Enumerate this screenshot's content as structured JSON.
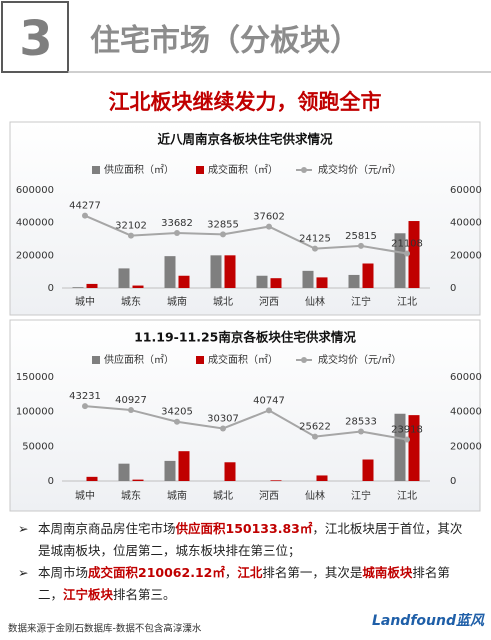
{
  "header": {
    "number": "3",
    "title": "住宅市场（分板块）"
  },
  "headline": "江北板块继续发力，领跑全市",
  "chart_data": [
    {
      "type": "bar",
      "title": "近八周南京各板块住宅供求情况",
      "categories": [
        "城中",
        "城东",
        "城南",
        "城北",
        "河西",
        "仙林",
        "江宁",
        "江北"
      ],
      "series": [
        {
          "name": "供应面积（㎡）",
          "color": "#7f7f7f",
          "values": [
            5000,
            120000,
            195000,
            200000,
            75000,
            105000,
            80000,
            335000
          ]
        },
        {
          "name": "成交面积（㎡）",
          "color": "#c00000",
          "values": [
            25000,
            15000,
            75000,
            200000,
            60000,
            65000,
            150000,
            410000
          ]
        },
        {
          "name": "成交均价（元/㎡）",
          "color": "#a6a6a6",
          "type": "line",
          "axis": "y2",
          "values": [
            44277,
            32102,
            33682,
            32855,
            37602,
            24125,
            25815,
            21108
          ]
        }
      ],
      "ylim": [
        0,
        600000
      ],
      "yticks": [
        0,
        200000,
        400000,
        600000
      ],
      "y2lim": [
        0,
        60000
      ],
      "y2ticks": [
        0,
        20000,
        40000,
        60000
      ],
      "grid": false
    },
    {
      "type": "bar",
      "title": "11.19-11.25南京各板块住宅供求情况",
      "categories": [
        "城中",
        "城东",
        "城南",
        "城北",
        "河西",
        "仙林",
        "江宁",
        "江北"
      ],
      "series": [
        {
          "name": "供应面积（㎡）",
          "color": "#7f7f7f",
          "values": [
            0,
            25000,
            29000,
            0,
            0,
            0,
            0,
            97000
          ]
        },
        {
          "name": "成交面积（㎡）",
          "color": "#c00000",
          "values": [
            6000,
            2000,
            43000,
            27000,
            1000,
            8000,
            31000,
            95000
          ]
        },
        {
          "name": "成交均价（元/㎡）",
          "color": "#a6a6a6",
          "type": "line",
          "axis": "y2",
          "values": [
            43231,
            40927,
            34205,
            30307,
            40747,
            25622,
            28533,
            23918
          ]
        }
      ],
      "ylim": [
        0,
        150000
      ],
      "yticks": [
        0,
        50000,
        100000,
        150000
      ],
      "y2lim": [
        0,
        60000
      ],
      "y2ticks": [
        0,
        20000,
        40000,
        60000
      ],
      "grid": false
    }
  ],
  "bullets": [
    [
      {
        "text": "本周南京商品房住宅市场"
      },
      {
        "text": "供应面积150133.83㎡",
        "em": true
      },
      {
        "text": "，江北板块居于首位，其次是城南板块，位居第二，城东板块排在第三位；"
      }
    ],
    [
      {
        "text": "本周市场"
      },
      {
        "text": "成交面积210062.12㎡",
        "em": true
      },
      {
        "text": "，"
      },
      {
        "text": "江北",
        "em": true
      },
      {
        "text": "排名第一，其次是"
      },
      {
        "text": "城南板块",
        "em": true
      },
      {
        "text": "排名第二，"
      },
      {
        "text": "江宁板块",
        "em": true
      },
      {
        "text": "排名第三。"
      }
    ]
  ],
  "footer": {
    "source": "数据来源于金刚石数据库-数据不包含高淳溧水",
    "logo": "Landfound蓝风"
  }
}
